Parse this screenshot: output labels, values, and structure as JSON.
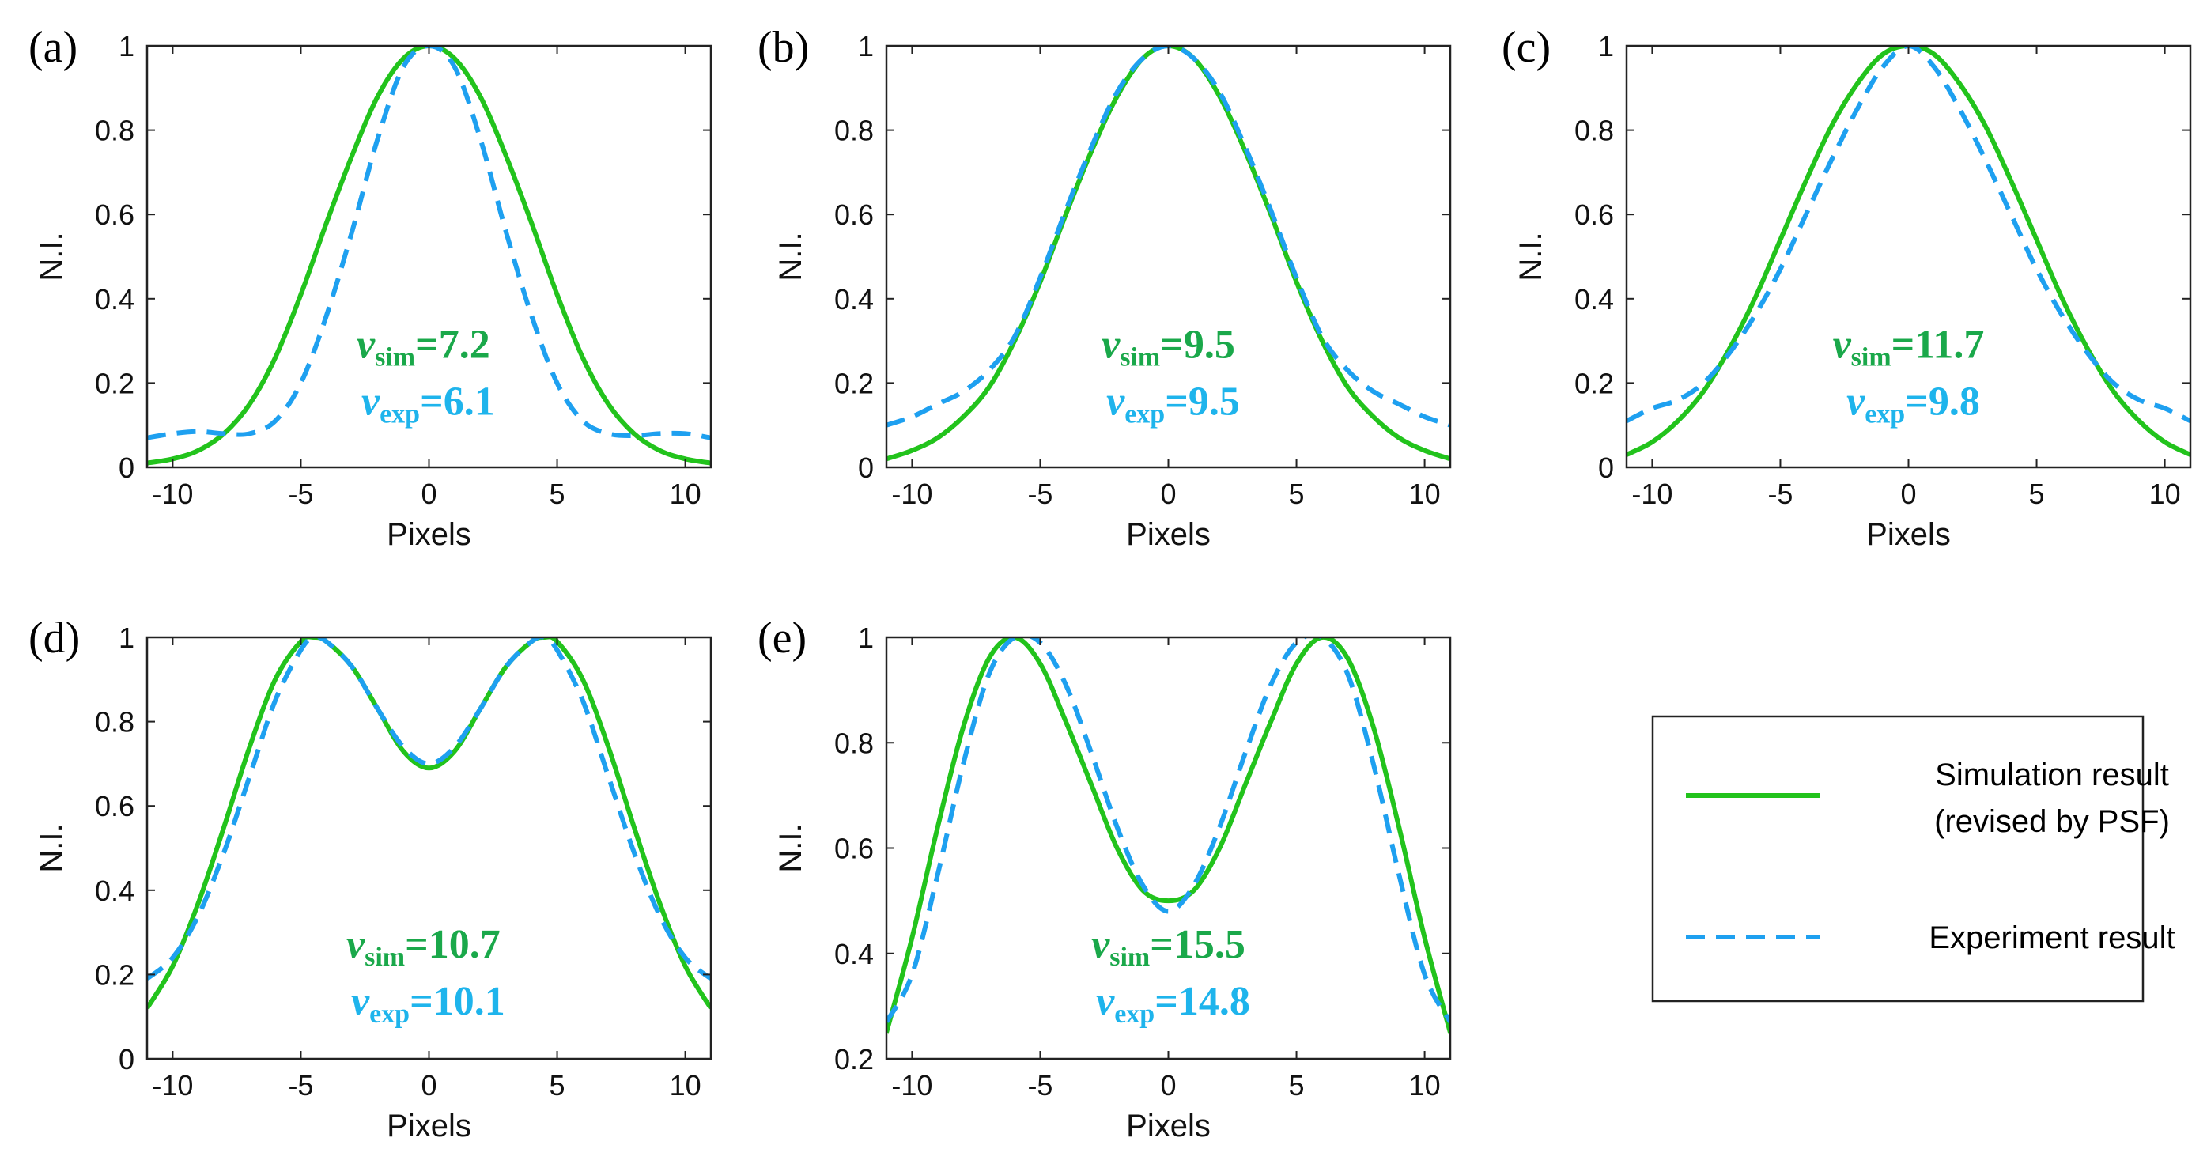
{
  "colors": {
    "sim": "#22c31c",
    "exp": "#1ea0f0",
    "sim_text": "#1aa84a",
    "exp_text": "#1eb4ec"
  },
  "legend": {
    "sim_line1": "Simulation result",
    "sim_line2": "(revised by PSF)",
    "exp": "Experiment result"
  },
  "chart_data": [
    {
      "type": "line",
      "panel": "(a)",
      "xlabel": "Pixels",
      "ylabel": "N.I.",
      "xlim": [
        -11,
        11
      ],
      "ylim": [
        0,
        1
      ],
      "xticks": [
        -10,
        -5,
        0,
        5,
        10
      ],
      "xtick_labels": [
        "-10",
        "-5",
        "0",
        "5",
        "10"
      ],
      "yticks": [
        0,
        0.2,
        0.4,
        0.6,
        0.8,
        1
      ],
      "ytick_labels": [
        "0",
        "0.2",
        "0.4",
        "0.6",
        "0.8",
        "1"
      ],
      "annotation": {
        "sim_sub": "sim",
        "sim_value": "=7.2",
        "exp_sub": "exp",
        "exp_value": "=6.1"
      },
      "series": [
        {
          "name": "Simulation result (revised by PSF)",
          "x": [
            -11,
            -10,
            -9,
            -8,
            -7,
            -6,
            -5,
            -4,
            -3,
            -2,
            -1,
            0,
            1,
            2,
            3,
            4,
            5,
            6,
            7,
            8,
            9,
            10,
            11
          ],
          "y": [
            0.01,
            0.02,
            0.04,
            0.08,
            0.15,
            0.26,
            0.41,
            0.58,
            0.74,
            0.88,
            0.97,
            1.0,
            0.97,
            0.88,
            0.74,
            0.58,
            0.41,
            0.26,
            0.15,
            0.08,
            0.04,
            0.02,
            0.01
          ]
        },
        {
          "name": "Experiment result",
          "x": [
            -11,
            -10,
            -9,
            -8,
            -7,
            -6,
            -5,
            -4,
            -3,
            -2,
            -1,
            0,
            1,
            2,
            3,
            4,
            5,
            6,
            7,
            8,
            9,
            10,
            11
          ],
          "y": [
            0.07,
            0.08,
            0.085,
            0.08,
            0.08,
            0.11,
            0.2,
            0.36,
            0.56,
            0.78,
            0.95,
            1.0,
            0.95,
            0.78,
            0.56,
            0.36,
            0.2,
            0.11,
            0.08,
            0.075,
            0.08,
            0.08,
            0.07
          ]
        }
      ]
    },
    {
      "type": "line",
      "panel": "(b)",
      "xlabel": "Pixels",
      "ylabel": "N.I.",
      "xlim": [
        -11,
        11
      ],
      "ylim": [
        0,
        1
      ],
      "xticks": [
        -10,
        -5,
        0,
        5,
        10
      ],
      "xtick_labels": [
        "-10",
        "-5",
        "0",
        "5",
        "10"
      ],
      "yticks": [
        0,
        0.2,
        0.4,
        0.6,
        0.8,
        1
      ],
      "ytick_labels": [
        "0",
        "0.2",
        "0.4",
        "0.6",
        "0.8",
        "1"
      ],
      "annotation": {
        "sim_sub": "sim",
        "sim_value": "=9.5",
        "exp_sub": "exp",
        "exp_value": "=9.5"
      },
      "series": [
        {
          "name": "Simulation result (revised by PSF)",
          "x": [
            -11,
            -10,
            -9,
            -8,
            -7,
            -6,
            -5,
            -4,
            -3,
            -2,
            -1,
            0,
            1,
            2,
            3,
            4,
            5,
            6,
            7,
            8,
            9,
            10,
            11
          ],
          "y": [
            0.02,
            0.04,
            0.07,
            0.12,
            0.19,
            0.3,
            0.44,
            0.6,
            0.75,
            0.88,
            0.97,
            1.0,
            0.97,
            0.88,
            0.75,
            0.6,
            0.44,
            0.3,
            0.19,
            0.12,
            0.07,
            0.04,
            0.02
          ]
        },
        {
          "name": "Experiment result",
          "x": [
            -11,
            -10,
            -9,
            -8,
            -7,
            -6,
            -5,
            -4,
            -3,
            -2,
            -1,
            0,
            1,
            2,
            3,
            4,
            5,
            6,
            7,
            8,
            9,
            10,
            11
          ],
          "y": [
            0.1,
            0.12,
            0.15,
            0.18,
            0.23,
            0.31,
            0.45,
            0.61,
            0.76,
            0.89,
            0.97,
            1.0,
            0.97,
            0.89,
            0.76,
            0.61,
            0.45,
            0.31,
            0.23,
            0.18,
            0.15,
            0.12,
            0.1
          ]
        }
      ]
    },
    {
      "type": "line",
      "panel": "(c)",
      "xlabel": "Pixels",
      "ylabel": "N.I.",
      "xlim": [
        -11,
        11
      ],
      "ylim": [
        0,
        1
      ],
      "xticks": [
        -10,
        -5,
        0,
        5,
        10
      ],
      "xtick_labels": [
        "-10",
        "-5",
        "0",
        "5",
        "10"
      ],
      "yticks": [
        0,
        0.2,
        0.4,
        0.6,
        0.8,
        1
      ],
      "ytick_labels": [
        "0",
        "0.2",
        "0.4",
        "0.6",
        "0.8",
        "1"
      ],
      "annotation": {
        "sim_sub": "sim",
        "sim_value": "=11.7",
        "exp_sub": "exp",
        "exp_value": "=9.8"
      },
      "series": [
        {
          "name": "Simulation result (revised by PSF)",
          "x": [
            -11,
            -10,
            -9,
            -8,
            -7,
            -6,
            -5,
            -4,
            -3,
            -2,
            -1,
            0,
            1,
            2,
            3,
            4,
            5,
            6,
            7,
            8,
            9,
            10,
            11
          ],
          "y": [
            0.03,
            0.06,
            0.11,
            0.18,
            0.28,
            0.4,
            0.54,
            0.68,
            0.81,
            0.91,
            0.98,
            1.0,
            0.98,
            0.91,
            0.81,
            0.68,
            0.54,
            0.4,
            0.28,
            0.18,
            0.11,
            0.06,
            0.03
          ]
        },
        {
          "name": "Experiment result",
          "x": [
            -11,
            -10,
            -9,
            -8,
            -7,
            -6,
            -5,
            -4,
            -3,
            -2,
            -1,
            0,
            1,
            2,
            3,
            4,
            5,
            6,
            7,
            8,
            9,
            10,
            11
          ],
          "y": [
            0.11,
            0.14,
            0.16,
            0.2,
            0.27,
            0.36,
            0.47,
            0.6,
            0.73,
            0.85,
            0.95,
            1.0,
            0.95,
            0.85,
            0.73,
            0.6,
            0.47,
            0.36,
            0.27,
            0.2,
            0.16,
            0.14,
            0.11
          ]
        }
      ]
    },
    {
      "type": "line",
      "panel": "(d)",
      "xlabel": "Pixels",
      "ylabel": "N.I.",
      "xlim": [
        -11,
        11
      ],
      "ylim": [
        0,
        1
      ],
      "xticks": [
        -10,
        -5,
        0,
        5,
        10
      ],
      "xtick_labels": [
        "-10",
        "-5",
        "0",
        "5",
        "10"
      ],
      "yticks": [
        0,
        0.2,
        0.4,
        0.6,
        0.8,
        1
      ],
      "ytick_labels": [
        "0",
        "0.2",
        "0.4",
        "0.6",
        "0.8",
        "1"
      ],
      "annotation": {
        "sim_sub": "sim",
        "sim_value": "=10.7",
        "exp_sub": "exp",
        "exp_value": "=10.1"
      },
      "series": [
        {
          "name": "Simulation result (revised by PSF)",
          "x": [
            -11,
            -10,
            -9,
            -8,
            -7,
            -6,
            -5,
            -4.5,
            -4,
            -3,
            -2,
            -1,
            0,
            1,
            2,
            3,
            4,
            4.5,
            5,
            6,
            7,
            8,
            9,
            10,
            11
          ],
          "y": [
            0.12,
            0.22,
            0.37,
            0.55,
            0.74,
            0.9,
            0.99,
            1.0,
            0.99,
            0.93,
            0.83,
            0.73,
            0.69,
            0.73,
            0.83,
            0.93,
            0.99,
            1.0,
            0.99,
            0.9,
            0.74,
            0.55,
            0.37,
            0.22,
            0.12
          ]
        },
        {
          "name": "Experiment result",
          "x": [
            -11,
            -10,
            -9,
            -8,
            -7,
            -6,
            -5,
            -4.5,
            -4,
            -3,
            -2,
            -1,
            0,
            1,
            2,
            3,
            4,
            4.5,
            5,
            6,
            7,
            8,
            9,
            10,
            11
          ],
          "y": [
            0.19,
            0.24,
            0.34,
            0.49,
            0.67,
            0.85,
            0.97,
            1.0,
            0.99,
            0.93,
            0.83,
            0.74,
            0.7,
            0.74,
            0.83,
            0.93,
            0.99,
            1.0,
            0.97,
            0.85,
            0.67,
            0.49,
            0.34,
            0.24,
            0.19
          ]
        }
      ]
    },
    {
      "type": "line",
      "panel": "(e)",
      "xlabel": "Pixels",
      "ylabel": "N.I.",
      "xlim": [
        -11,
        11
      ],
      "ylim": [
        0.2,
        1
      ],
      "xticks": [
        -10,
        -5,
        0,
        5,
        10
      ],
      "xtick_labels": [
        "-10",
        "-5",
        "0",
        "5",
        "10"
      ],
      "yticks": [
        0.2,
        0.4,
        0.6,
        0.8,
        1
      ],
      "ytick_labels": [
        "0.2",
        "0.4",
        "0.6",
        "0.8",
        "1"
      ],
      "annotation": {
        "sim_sub": "sim",
        "sim_value": "=15.5",
        "exp_sub": "exp",
        "exp_value": "=14.8"
      },
      "series": [
        {
          "name": "Simulation result (revised by PSF)",
          "x": [
            -11,
            -10,
            -9,
            -8,
            -7,
            -6,
            -5,
            -4,
            -3,
            -2,
            -1,
            0,
            1,
            2,
            3,
            4,
            5,
            6,
            7,
            8,
            9,
            10,
            11
          ],
          "y": [
            0.25,
            0.43,
            0.64,
            0.83,
            0.96,
            1.0,
            0.95,
            0.84,
            0.72,
            0.6,
            0.52,
            0.5,
            0.52,
            0.6,
            0.72,
            0.84,
            0.95,
            1.0,
            0.96,
            0.83,
            0.64,
            0.43,
            0.25
          ]
        },
        {
          "name": "Experiment result",
          "x": [
            -11,
            -10,
            -9,
            -8,
            -7,
            -6,
            -5,
            -4,
            -3,
            -2,
            -1,
            0,
            1,
            2,
            3,
            4,
            5,
            6,
            7,
            8,
            9,
            10,
            11
          ],
          "y": [
            0.27,
            0.36,
            0.55,
            0.76,
            0.93,
            1.0,
            0.99,
            0.91,
            0.78,
            0.64,
            0.53,
            0.48,
            0.53,
            0.64,
            0.78,
            0.91,
            0.99,
            1.0,
            0.93,
            0.76,
            0.55,
            0.36,
            0.27
          ]
        }
      ]
    }
  ]
}
